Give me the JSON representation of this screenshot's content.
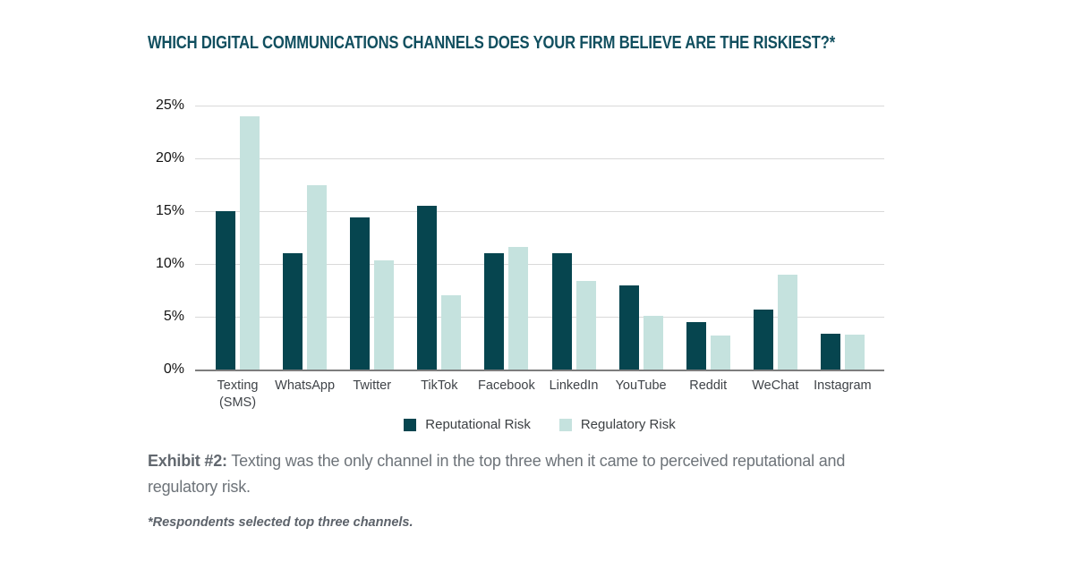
{
  "title": {
    "text": "WHICH DIGITAL COMMUNICATIONS CHANNELS DOES YOUR FIRM BELIEVE ARE THE RISKIEST?*",
    "color": "#114f5f"
  },
  "chart_data": {
    "type": "bar",
    "title": "WHICH DIGITAL COMMUNICATIONS CHANNELS DOES YOUR FIRM BELIEVE ARE THE RISKIEST?*",
    "categories": [
      "Texting (SMS)",
      "WhatsApp",
      "Twitter",
      "TikTok",
      "Facebook",
      "LinkedIn",
      "YouTube",
      "Reddit",
      "WeChat",
      "Instagram"
    ],
    "series": [
      {
        "name": "Reputational Risk",
        "color": "#06454f",
        "values": [
          15,
          11,
          14.4,
          15.5,
          11,
          11,
          8,
          4.5,
          5.7,
          3.4
        ]
      },
      {
        "name": "Regulatory Risk",
        "color": "#c5e2de",
        "values": [
          24,
          17.5,
          10.3,
          7,
          11.6,
          8.4,
          5.1,
          3.2,
          9,
          3.3
        ]
      }
    ],
    "xlabel": "",
    "ylabel": "",
    "ylim": [
      0,
      25
    ],
    "yticks": [
      "0%",
      "5%",
      "10%",
      "15%",
      "20%",
      "25%"
    ],
    "grid": true,
    "legend_position": "bottom",
    "value_unit": "%"
  },
  "caption": {
    "prefix": "Exhibit #2:",
    "text": " Texting was the only channel in the top three when it came to perceived reputational and regulatory risk."
  },
  "footnote": {
    "text": "*Respondents selected top three channels."
  },
  "colors": {
    "reputational": "#06454f",
    "regulatory": "#c5e2de",
    "gridline": "#d9d9d9",
    "axis": "#7d7d7d",
    "title": "#114f5f",
    "caption": "#6d7379"
  }
}
